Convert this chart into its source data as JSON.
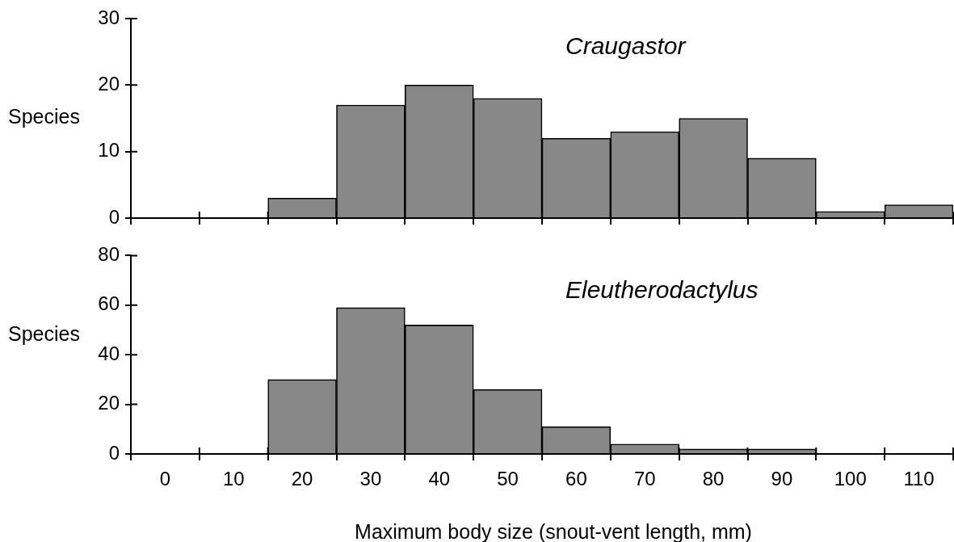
{
  "chart_data": [
    {
      "type": "bar",
      "title": "Craugastor",
      "ylabel": "Species",
      "categories": [
        "0",
        "10",
        "20",
        "30",
        "40",
        "50",
        "60",
        "70",
        "80",
        "90",
        "100",
        "110"
      ],
      "values": [
        0,
        0,
        3,
        17,
        20,
        18,
        12,
        13,
        15,
        9,
        1,
        2
      ],
      "color": "#888888",
      "ylim": [
        0,
        30
      ],
      "yticks": [
        0,
        10,
        20,
        30
      ],
      "tick_labels": "y"
    },
    {
      "type": "bar",
      "title": "Eleutherodactylus",
      "ylabel": "Species",
      "xlabel": "Maximum body size (snout-vent length, mm)",
      "categories": [
        "0",
        "10",
        "20",
        "30",
        "40",
        "50",
        "60",
        "70",
        "80",
        "90",
        "100",
        "110"
      ],
      "values": [
        0,
        0,
        30,
        59,
        52,
        26,
        11,
        4,
        2,
        2,
        0,
        0
      ],
      "color": "#888888",
      "ylim": [
        0,
        80
      ],
      "yticks": [
        0,
        20,
        40,
        60,
        80
      ]
    }
  ]
}
